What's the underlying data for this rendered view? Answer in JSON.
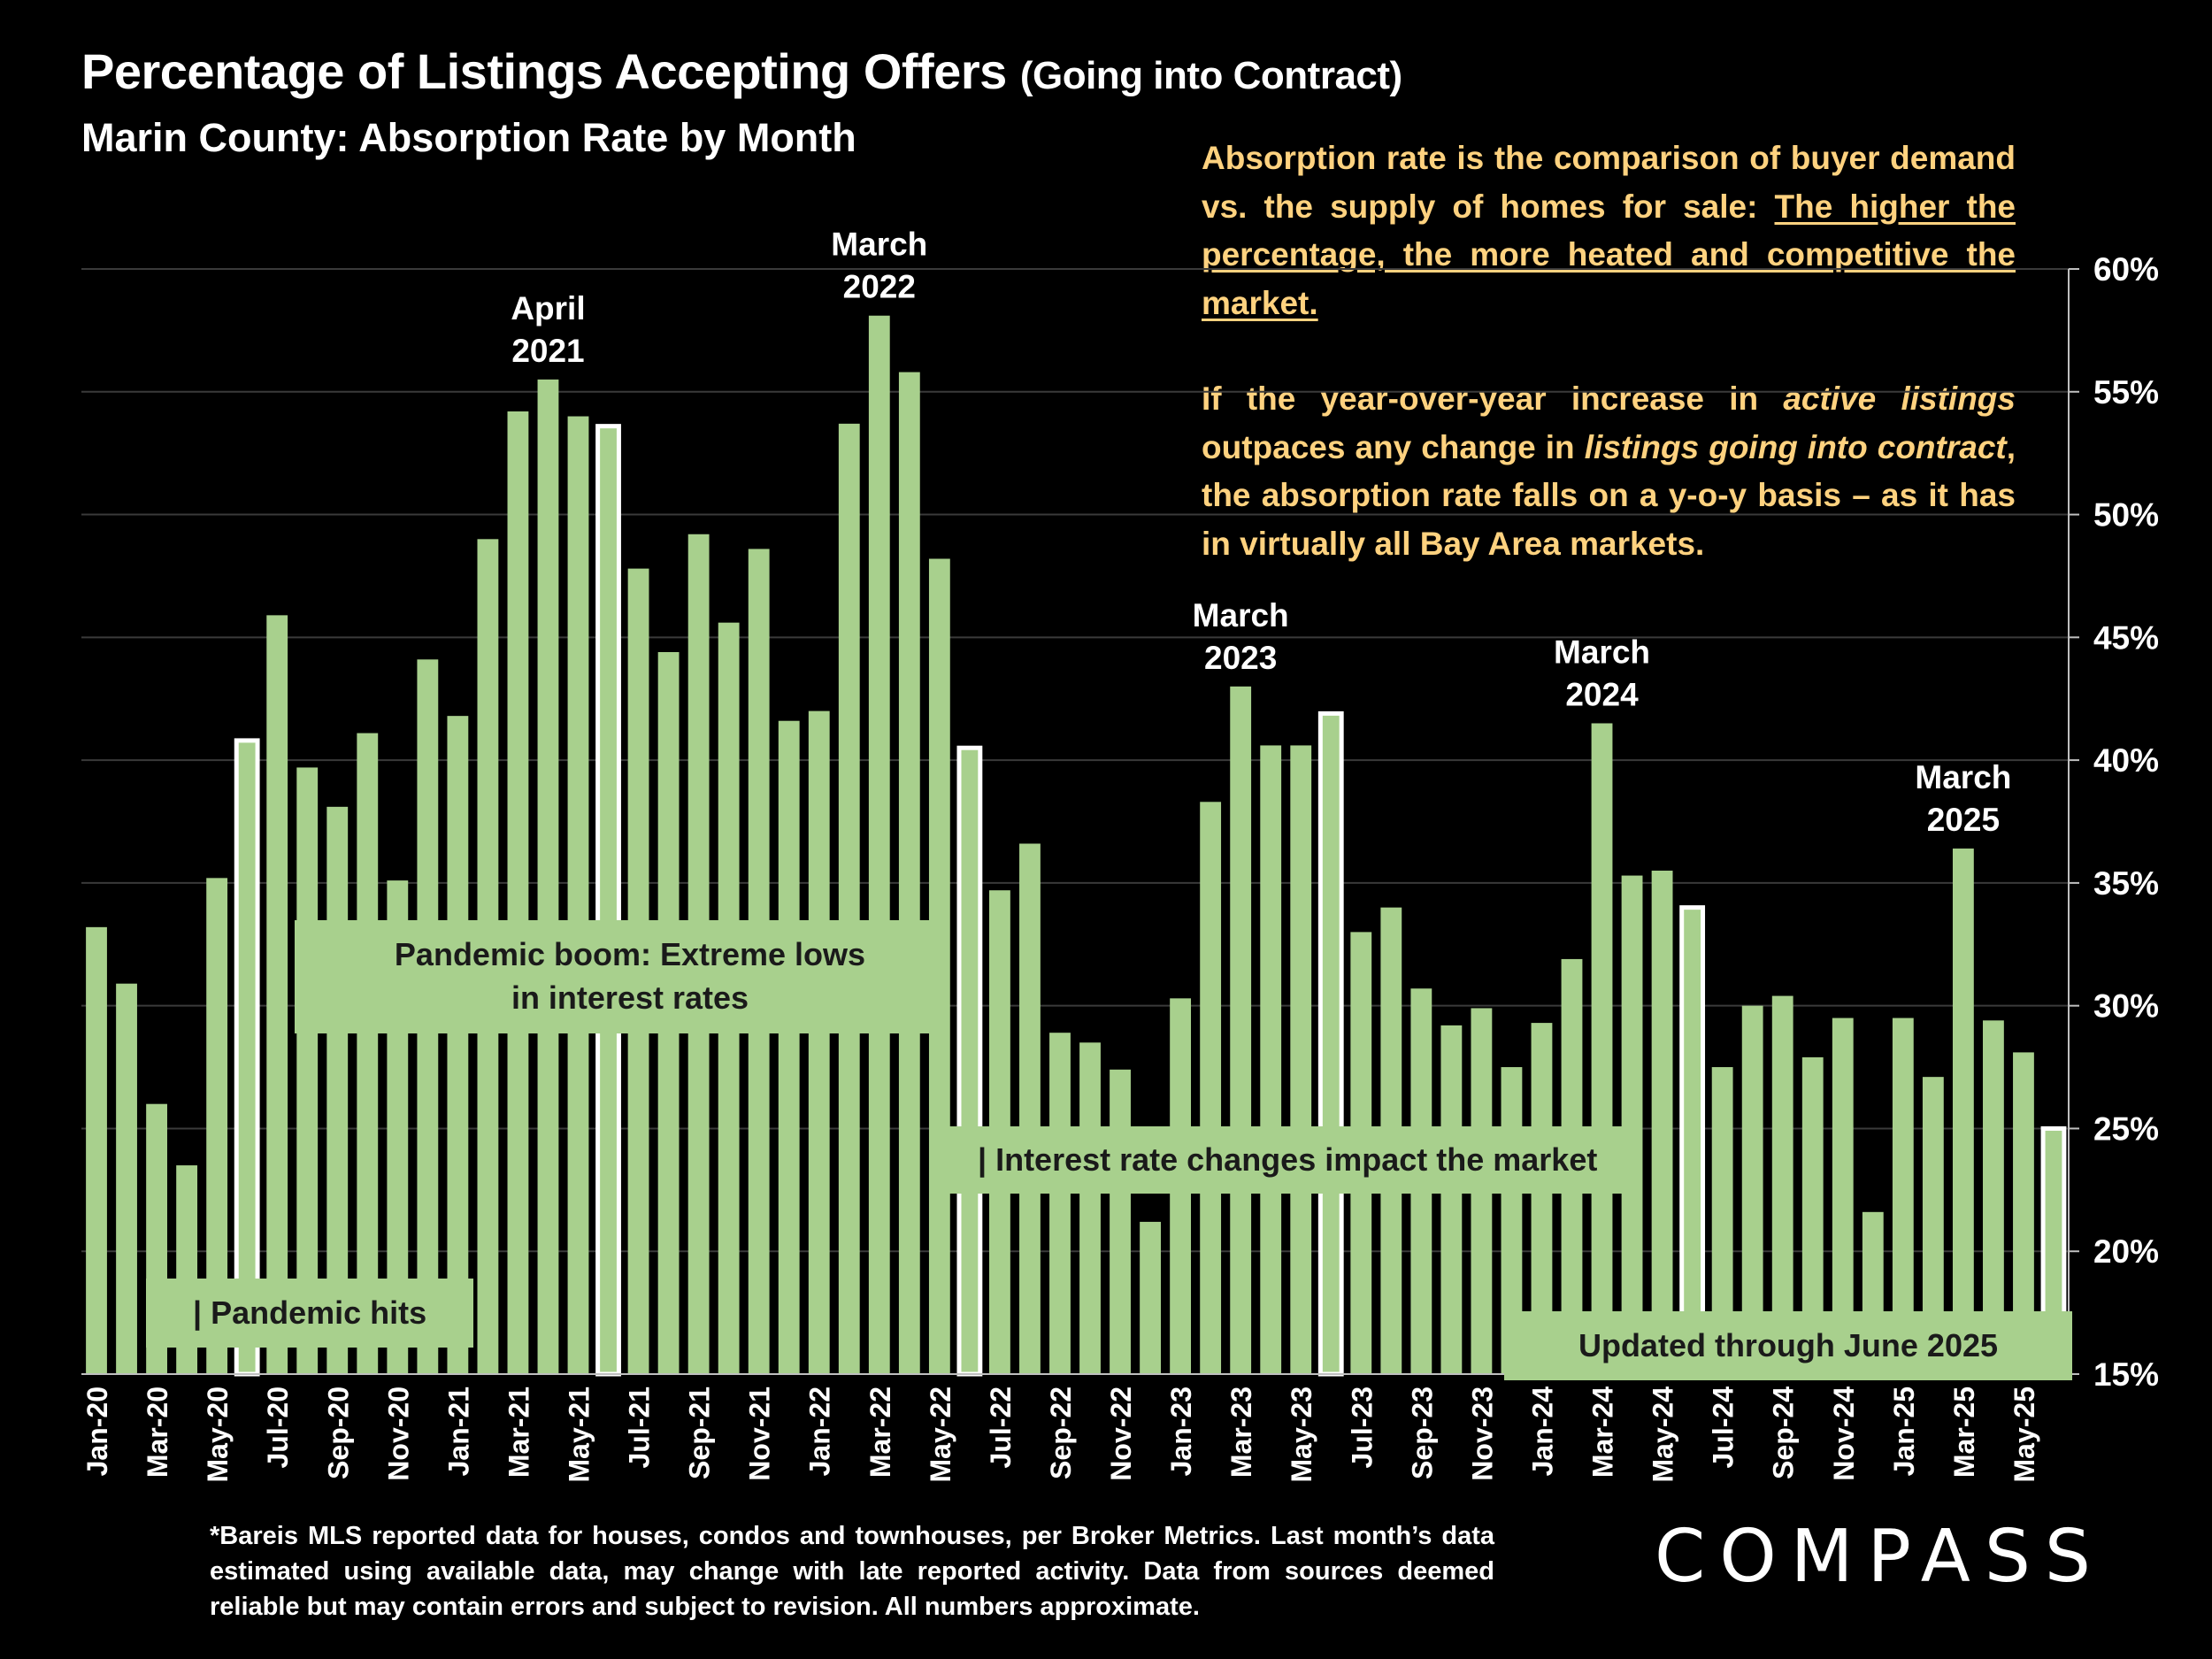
{
  "title": {
    "main": "Percentage of Listings Accepting Offers",
    "suffix": "(Going into Contract)",
    "subtitle": "Marin County:  Absorption Rate by Month"
  },
  "note": {
    "p1_plain": "Absorption rate is the comparison of buyer demand vs. the supply of homes for sale: ",
    "p1_underlined": "The higher the percentage, the more heated and competitive the market.",
    "p2_a": "If the year-over-year increase in ",
    "p2_b": "active listings",
    "p2_c": " outpaces any change in ",
    "p2_d": "listings going into contract",
    "p2_e": ", the absorption rate falls on a y-o-y basis – as it has in virtually all Bay Area markets."
  },
  "footnote": "*Bareis MLS reported data for houses, condos and townhouses, per Broker Metrics. Last month’s data estimated using available data, may change with late reported activity. Data from sources deemed reliable but may contain errors and subject to revision. All numbers approximate.",
  "logo": "COMPASS",
  "chart_data": {
    "type": "bar",
    "ylabel": "",
    "xlabel": "",
    "ylim": [
      15,
      60
    ],
    "yticks": [
      15,
      20,
      25,
      30,
      35,
      40,
      45,
      50,
      55,
      60
    ],
    "ytick_suffix": "%",
    "y_axis_position": "right",
    "grid": true,
    "colors": {
      "bar": "#a8d08d",
      "highlight_outline": "#ffffff",
      "background": "#000000",
      "gridline": "#3a3a3a",
      "callout_box": "#a8d08d",
      "callout_text": "#1a1a1a",
      "note_text": "#ffd27f"
    },
    "categories": [
      "Jan-20",
      "Feb-20",
      "Mar-20",
      "Apr-20",
      "May-20",
      "Jun-20",
      "Jul-20",
      "Aug-20",
      "Sep-20",
      "Oct-20",
      "Nov-20",
      "Dec-20",
      "Jan-21",
      "Feb-21",
      "Mar-21",
      "Apr-21",
      "May-21",
      "Jun-21",
      "Jul-21",
      "Aug-21",
      "Sep-21",
      "Oct-21",
      "Nov-21",
      "Dec-21",
      "Jan-22",
      "Feb-22",
      "Mar-22",
      "Apr-22",
      "May-22",
      "Jun-22",
      "Jul-22",
      "Aug-22",
      "Sep-22",
      "Oct-22",
      "Nov-22",
      "Dec-22",
      "Jan-23",
      "Feb-23",
      "Mar-23",
      "Apr-23",
      "May-23",
      "Jun-23",
      "Jul-23",
      "Aug-23",
      "Sep-23",
      "Oct-23",
      "Nov-23",
      "Dec-23",
      "Jan-24",
      "Feb-24",
      "Mar-24",
      "Apr-24",
      "May-24",
      "Jun-24",
      "Jul-24",
      "Aug-24",
      "Sep-24",
      "Oct-24",
      "Nov-24",
      "Dec-24",
      "Jan-25",
      "Feb-25",
      "Mar-25",
      "Apr-25",
      "May-25",
      "Jun-25"
    ],
    "tick_labels_shown": [
      "Jan-20",
      "Mar-20",
      "May-20",
      "Jul-20",
      "Sep-20",
      "Nov-20",
      "Jan-21",
      "Mar-21",
      "May-21",
      "Jul-21",
      "Sep-21",
      "Nov-21",
      "Jan-22",
      "Mar-22",
      "May-22",
      "Jul-22",
      "Sep-22",
      "Nov-22",
      "Jan-23",
      "Mar-23",
      "May-23",
      "Jul-23",
      "Sep-23",
      "Nov-23",
      "Jan-24",
      "Mar-24",
      "May-24",
      "Jul-24",
      "Sep-24",
      "Nov-24",
      "Jan-25",
      "Mar-25",
      "May-25"
    ],
    "values": [
      33.2,
      30.9,
      26.0,
      23.5,
      35.2,
      40.8,
      45.9,
      39.7,
      38.1,
      41.1,
      35.1,
      44.1,
      41.8,
      49.0,
      54.2,
      55.5,
      54.0,
      53.6,
      47.8,
      44.4,
      49.2,
      45.6,
      48.6,
      41.6,
      42.0,
      53.7,
      58.1,
      55.8,
      48.2,
      40.5,
      34.7,
      36.6,
      28.9,
      28.5,
      27.4,
      21.2,
      30.3,
      38.3,
      43.0,
      40.6,
      40.6,
      41.9,
      33.0,
      34.0,
      30.7,
      29.2,
      29.9,
      27.5,
      29.3,
      31.9,
      41.5,
      35.3,
      35.5,
      34.0,
      27.5,
      30.0,
      30.4,
      27.9,
      29.5,
      21.6,
      29.5,
      27.1,
      36.4,
      29.4,
      28.1,
      25.0
    ],
    "highlighted": [
      "Jun-20",
      "Jun-21",
      "Jun-22",
      "Jun-23",
      "Jun-24",
      "Jun-25"
    ],
    "annotations": [
      {
        "line1": "April",
        "line2": "2021",
        "at": "Apr-21"
      },
      {
        "line1": "March",
        "line2": "2022",
        "at": "Mar-22"
      },
      {
        "line1": "March",
        "line2": "2023",
        "at": "Mar-23"
      },
      {
        "line1": "March",
        "line2": "2024",
        "at": "Mar-24"
      },
      {
        "line1": "March",
        "line2": "2025",
        "at": "Mar-25"
      }
    ],
    "callouts": [
      {
        "id": "pandemic-boom",
        "lines": [
          "Pandemic boom: Extreme lows",
          "in interest rates"
        ]
      },
      {
        "id": "pandemic-hits",
        "lines": [
          "| Pandemic hits"
        ]
      },
      {
        "id": "interest-rate",
        "lines": [
          "| Interest rate changes impact the market"
        ]
      },
      {
        "id": "updated",
        "lines": [
          "Updated through June 2025"
        ]
      }
    ]
  }
}
